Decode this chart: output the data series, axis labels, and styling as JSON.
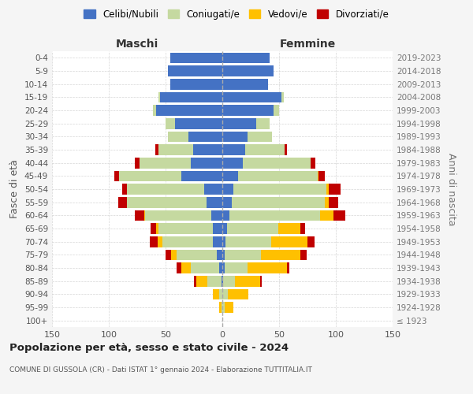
{
  "age_groups": [
    "100+",
    "95-99",
    "90-94",
    "85-89",
    "80-84",
    "75-79",
    "70-74",
    "65-69",
    "60-64",
    "55-59",
    "50-54",
    "45-49",
    "40-44",
    "35-39",
    "30-34",
    "25-29",
    "20-24",
    "15-19",
    "10-14",
    "5-9",
    "0-4"
  ],
  "birth_years": [
    "≤ 1923",
    "1924-1928",
    "1929-1933",
    "1934-1938",
    "1939-1943",
    "1944-1948",
    "1949-1953",
    "1954-1958",
    "1959-1963",
    "1964-1968",
    "1969-1973",
    "1974-1978",
    "1979-1983",
    "1984-1988",
    "1989-1993",
    "1994-1998",
    "1999-2003",
    "2004-2008",
    "2009-2013",
    "2014-2018",
    "2019-2023"
  ],
  "colors": {
    "celibi": "#4472c4",
    "coniugati": "#c5d9a0",
    "vedovi": "#ffc000",
    "divorziati": "#c00000"
  },
  "maschi": {
    "celibi": [
      0,
      0,
      0,
      1,
      3,
      5,
      8,
      8,
      10,
      14,
      16,
      36,
      28,
      26,
      30,
      42,
      58,
      55,
      46,
      48,
      46
    ],
    "coniugati": [
      0,
      1,
      3,
      12,
      25,
      35,
      45,
      48,
      58,
      70,
      68,
      55,
      45,
      30,
      18,
      8,
      3,
      1,
      0,
      0,
      0
    ],
    "vedovi": [
      0,
      2,
      5,
      10,
      8,
      5,
      4,
      2,
      1,
      0,
      0,
      0,
      0,
      0,
      0,
      0,
      0,
      0,
      0,
      0,
      0
    ],
    "divorziati": [
      0,
      0,
      0,
      2,
      4,
      5,
      7,
      5,
      8,
      8,
      4,
      4,
      4,
      3,
      0,
      0,
      0,
      0,
      0,
      0,
      0
    ]
  },
  "femmine": {
    "nubili": [
      0,
      0,
      0,
      1,
      2,
      2,
      3,
      4,
      6,
      8,
      10,
      14,
      18,
      20,
      22,
      30,
      45,
      52,
      40,
      45,
      42
    ],
    "coniugate": [
      0,
      2,
      5,
      10,
      20,
      32,
      40,
      45,
      80,
      82,
      82,
      70,
      60,
      35,
      22,
      12,
      5,
      2,
      0,
      0,
      0
    ],
    "vedove": [
      0,
      8,
      18,
      22,
      35,
      35,
      32,
      20,
      12,
      4,
      2,
      1,
      0,
      0,
      0,
      0,
      0,
      0,
      0,
      0,
      0
    ],
    "divorziate": [
      0,
      0,
      0,
      2,
      2,
      5,
      6,
      4,
      10,
      8,
      10,
      5,
      4,
      2,
      0,
      0,
      0,
      0,
      0,
      0,
      0
    ]
  },
  "title": "Popolazione per età, sesso e stato civile - 2024",
  "subtitle": "COMUNE DI GUSSOLA (CR) - Dati ISTAT 1° gennaio 2024 - Elaborazione TUTTITALIA.IT",
  "xlabel_maschi": "Maschi",
  "xlabel_femmine": "Femmine",
  "ylabel_left": "Fasce di età",
  "ylabel_right": "Anni di nascita",
  "xlim": 150,
  "background_color": "#f5f5f5",
  "plot_bg": "#ffffff",
  "legend_labels": [
    "Celibi/Nubili",
    "Coniugati/e",
    "Vedovi/e",
    "Divorziati/e"
  ]
}
